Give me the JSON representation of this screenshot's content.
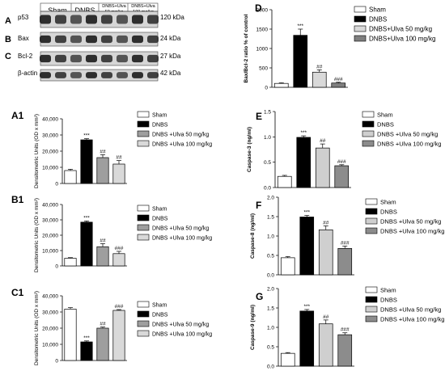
{
  "groups": [
    "Sham",
    "DNBS",
    "DNBS+Ulva 50 mg/kg",
    "DNBS+Ulva 100 mg/kg"
  ],
  "colors": {
    "sham": "#ffffff",
    "dnbs": "#000000",
    "ulva50": "#9e9e9e",
    "ulva100": "#d9d9d9",
    "ulva100_dark": "#7f7f7f"
  },
  "blots": {
    "panel_labels": [
      "A",
      "B",
      "C"
    ],
    "column_headers": [
      "Sham",
      "DNBS",
      "DNBS+Ulva",
      "50 mg/kg",
      "DNBS+Ulva",
      "100 mg/kg"
    ],
    "rows": [
      {
        "protein": "p53",
        "size": "120 kDa"
      },
      {
        "protein": "Bax",
        "size": "24 kDa"
      },
      {
        "protein": "Bcl-2",
        "size": "27 kDa"
      },
      {
        "protein": "β-actin",
        "size": "42 kDa"
      }
    ]
  },
  "chart_data": [
    {
      "id": "D",
      "panel_label": "D",
      "type": "bar",
      "categories": [
        "Sham",
        "DNBS",
        "DNBS+Ulva 50 mg/kg",
        "DNBS+Ulva 100 mg/kg"
      ],
      "legend": [
        "Sham",
        "DNBS",
        "DNBS+Ulva 50 mg/kg",
        "DNBS+Ulva 100 mg/kg"
      ],
      "values": [
        100,
        1340,
        390,
        110
      ],
      "errors": [
        15,
        160,
        60,
        20
      ],
      "annotations": [
        "",
        "***",
        "##",
        "###"
      ],
      "ylabel": "Bax/Bcl-2 ratio % of control",
      "ylim": [
        0,
        2000
      ],
      "yticks": [
        "0",
        "500",
        "1000",
        "1500",
        "2000"
      ],
      "fills": [
        "#ffffff",
        "#000000",
        "#d9d9d9",
        "#7f7f7f"
      ]
    },
    {
      "id": "A1",
      "panel_label": "A1",
      "type": "bar",
      "categories": [
        "Sham",
        "DNBS",
        "DNBS+Ulva 50 mg/kg",
        "DNBS+Ulva 100 mg/kg"
      ],
      "legend": [
        "Sham",
        "DNBS",
        "DNBS +Ulva 50 mg/kg",
        "DNBS +Ulva 100 mg/kg"
      ],
      "values": [
        8000,
        27000,
        16000,
        12000
      ],
      "errors": [
        800,
        700,
        1800,
        2200
      ],
      "annotations": [
        "",
        "***",
        "##",
        "##"
      ],
      "ylabel": "Densitometric Units (OD x mm²)",
      "ylim": [
        0,
        40000
      ],
      "yticks": [
        "0",
        "10,000",
        "20,000",
        "30,000",
        "40,000"
      ],
      "fills": [
        "#ffffff",
        "#000000",
        "#9e9e9e",
        "#d9d9d9"
      ]
    },
    {
      "id": "B1",
      "panel_label": "B1",
      "type": "bar",
      "categories": [
        "Sham",
        "DNBS",
        "DNBS+Ulva 50 mg/kg",
        "DNBS+Ulva 100 mg/kg"
      ],
      "legend": [
        "Sham",
        "DNBS",
        "DNBS +Ulva 50 mg/kg",
        "DNBS +Ulva 100 mg/kg"
      ],
      "values": [
        5000,
        28500,
        12500,
        8000
      ],
      "errors": [
        400,
        800,
        2000,
        1500
      ],
      "annotations": [
        "",
        "***",
        "##",
        "###"
      ],
      "ylabel": "Densitometric Units (OD x mm²)",
      "ylim": [
        0,
        40000
      ],
      "yticks": [
        "0",
        "10,000",
        "20,000",
        "30,000",
        "40,000"
      ],
      "fills": [
        "#ffffff",
        "#000000",
        "#9e9e9e",
        "#d9d9d9"
      ]
    },
    {
      "id": "C1",
      "panel_label": "C1",
      "type": "bar",
      "categories": [
        "Sham",
        "DNBS",
        "DNBS+Ulva 50 mg/kg",
        "DNBS+Ulva 100 mg/kg"
      ],
      "legend": [
        "Sham",
        "DNBS",
        "DNBS +Ulva 50 mg/kg",
        "DNBS +Ulva 100 mg/kg"
      ],
      "values": [
        31800,
        11500,
        20000,
        31000
      ],
      "errors": [
        900,
        600,
        700,
        500
      ],
      "annotations": [
        "",
        "***",
        "##",
        "###"
      ],
      "ylabel": "Densitometric Units (OD x mm²)",
      "ylim": [
        0,
        40000
      ],
      "yticks": [
        "0",
        "10,000",
        "20,000",
        "30,000",
        "40,000"
      ],
      "fills": [
        "#ffffff",
        "#000000",
        "#9e9e9e",
        "#d9d9d9"
      ]
    },
    {
      "id": "E",
      "panel_label": "E",
      "type": "bar",
      "categories": [
        "Sham",
        "DNBS",
        "DNBS+Ulva 50 mg/kg",
        "DNBS+Ulva 100 mg/kg"
      ],
      "legend": [
        "Sham",
        "DNBS",
        "DNBS +Ulva 50 mg/kg",
        "DNBS +Ulva 100 mg/kg"
      ],
      "values": [
        0.22,
        0.99,
        0.78,
        0.43
      ],
      "errors": [
        0.02,
        0.03,
        0.08,
        0.02
      ],
      "annotations": [
        "",
        "***",
        "##",
        "###"
      ],
      "ylabel": "Caspase-3 (ng/ml)",
      "ylim": [
        0,
        1.5
      ],
      "yticks": [
        "0.0",
        "0.5",
        "1.0",
        "1.5"
      ],
      "fills": [
        "#ffffff",
        "#000000",
        "#cfcfcf",
        "#8c8c8c"
      ]
    },
    {
      "id": "F",
      "panel_label": "F",
      "type": "bar",
      "categories": [
        "Sham",
        "DNBS",
        "DNBS+Ulva 50 mg/kg",
        "DNBS+Ulva 100 mg/kg"
      ],
      "legend": [
        "Sham",
        "DNBS",
        "DNBS +Ulva 50 mg/kg",
        "DNBS +Ulva 100 mg/kg"
      ],
      "values": [
        0.44,
        1.49,
        1.16,
        0.68
      ],
      "errors": [
        0.03,
        0.04,
        0.1,
        0.06
      ],
      "annotations": [
        "",
        "***",
        "##",
        "###"
      ],
      "ylabel": "Caspase-8 (ng/ml)",
      "ylim": [
        0,
        2.0
      ],
      "yticks": [
        "0.0",
        "0.5",
        "1.0",
        "1.5",
        "2.0"
      ],
      "fills": [
        "#ffffff",
        "#000000",
        "#cfcfcf",
        "#8c8c8c"
      ]
    },
    {
      "id": "G",
      "panel_label": "G",
      "type": "bar",
      "categories": [
        "Sham",
        "DNBS",
        "DNBS+Ulva 50 mg/kg",
        "DNBS+Ulva 100 mg/kg"
      ],
      "legend": [
        "Sham",
        "DNBS",
        "DNBS +Ulva 50 mg/kg",
        "DNBS +Ulva 100 mg/kg"
      ],
      "values": [
        0.33,
        1.42,
        1.09,
        0.81
      ],
      "errors": [
        0.02,
        0.04,
        0.1,
        0.05
      ],
      "annotations": [
        "",
        "***",
        "##",
        "###"
      ],
      "ylabel": "Caspase-9 (ng/ml)",
      "ylim": [
        0,
        2.0
      ],
      "yticks": [
        "0.0",
        "0.5",
        "1.0",
        "1.5",
        "2.0"
      ],
      "fills": [
        "#ffffff",
        "#000000",
        "#cfcfcf",
        "#8c8c8c"
      ]
    }
  ]
}
